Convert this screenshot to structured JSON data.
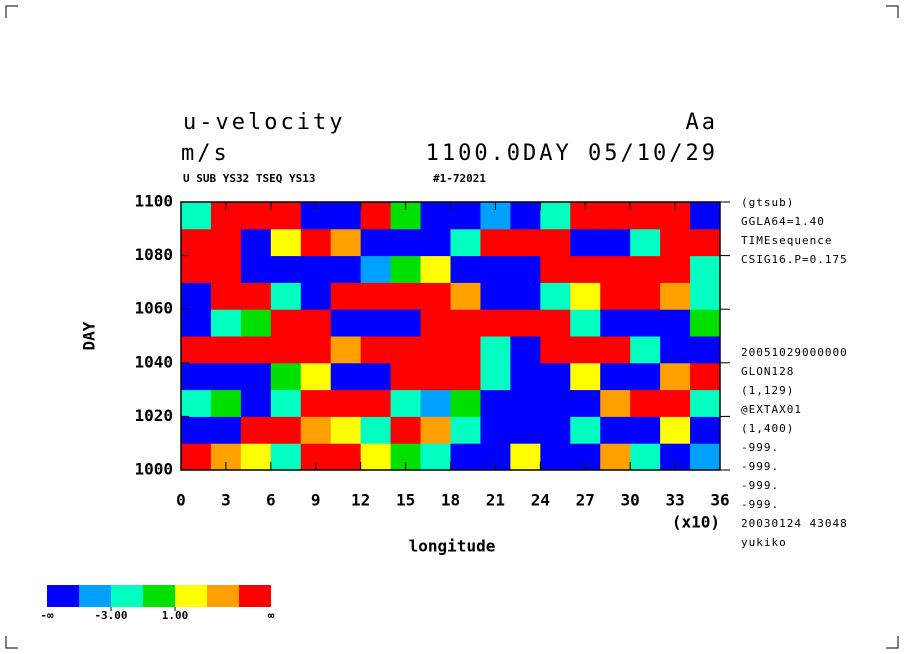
{
  "chart_data": {
    "type": "heatmap",
    "title": "u-velocity",
    "title_right": "Aa",
    "units": "m/s",
    "time_label": "1100.0DAY 05/10/29",
    "subtitle": "U SUB YS32 TSEQ YS13",
    "run_id": "#1-72021",
    "xlabel": "longitude",
    "ylabel": "DAY",
    "x_multiplier": "(x10)",
    "xlim": [
      0,
      360
    ],
    "ylim": [
      1000,
      1100
    ],
    "xticks": [
      0,
      {
        "value": 30,
        "label": "3"
      },
      {
        "value": 60,
        "label": "6"
      },
      {
        "value": 90,
        "label": "9"
      },
      {
        "value": 120,
        "label": "12"
      },
      {
        "value": 150,
        "label": "15"
      },
      {
        "value": 180,
        "label": "18"
      },
      {
        "value": 210,
        "label": "21"
      },
      {
        "value": 240,
        "label": "24"
      },
      {
        "value": 270,
        "label": "27"
      },
      {
        "value": 300,
        "label": "30"
      },
      {
        "value": 330,
        "label": "33"
      },
      {
        "value": 360,
        "label": "36"
      }
    ],
    "yticks": [
      1000,
      1020,
      1040,
      1060,
      1080,
      1100
    ],
    "annotations_top": [
      "(gtsub)",
      "GGLA64=1.40",
      "TIMEsequence",
      "CSIG16.P=0.175"
    ],
    "annotations_bottom": [
      "20051029000000",
      "GLON128",
      "(1,129)",
      "@EXTAX01",
      "(1,400)",
      "-999.",
      "-999.",
      "-999.",
      "-999.",
      "20030124  43048",
      "yukiko"
    ],
    "colors": [
      "#0000ff",
      "#00a0ff",
      "#00ffc0",
      "#00e000",
      "#ffff00",
      "#ffa000",
      "#ff0000"
    ],
    "bounds": [
      -5,
      -3,
      -1,
      1,
      3,
      5
    ],
    "colorbar_ticks": [
      {
        "value": -3,
        "label": "-3.00"
      },
      {
        "value": 1,
        "label": "1.00"
      }
    ],
    "colorbar_low_label": "-∞",
    "colorbar_high_label": "∞",
    "z": [
      [
        6,
        4,
        2,
        -2,
        6,
        6,
        2,
        0,
        -2,
        -6,
        -6,
        2,
        -6,
        -6,
        4,
        -2,
        -6,
        -4
      ],
      [
        -6,
        -6,
        6,
        6,
        4,
        2,
        -2,
        6,
        4,
        -2,
        -6,
        -6,
        -6,
        -2,
        -6,
        -6,
        2,
        -6
      ],
      [
        -2,
        0,
        -6,
        -2,
        6,
        6,
        6,
        -2,
        -4,
        0,
        -6,
        -6,
        -6,
        -6,
        4,
        6,
        6,
        -2
      ],
      [
        -6,
        -6,
        -6,
        0,
        2,
        -6,
        -6,
        6,
        6,
        6,
        -2,
        -6,
        -6,
        2,
        -6,
        -6,
        4,
        6
      ],
      [
        6,
        6,
        6,
        6,
        6,
        4,
        6,
        6,
        6,
        6,
        -2,
        -6,
        6,
        6,
        6,
        -2,
        -6,
        -6
      ],
      [
        -6,
        -2,
        0,
        6,
        6,
        -6,
        -6,
        -6,
        6,
        6,
        6,
        6,
        6,
        -2,
        -6,
        -6,
        -6,
        0
      ],
      [
        -6,
        6,
        6,
        -2,
        -6,
        6,
        6,
        6,
        6,
        4,
        -6,
        -6,
        -2,
        2,
        6,
        6,
        4,
        -2
      ],
      [
        6,
        6,
        -6,
        -6,
        -6,
        -6,
        -4,
        0,
        2,
        -6,
        -6,
        -6,
        6,
        6,
        6,
        6,
        6,
        -2
      ],
      [
        6,
        6,
        -6,
        2,
        6,
        4,
        -6,
        -6,
        -6,
        -2,
        6,
        6,
        6,
        -6,
        -6,
        -2,
        6,
        6
      ],
      [
        -2,
        6,
        6,
        6,
        -6,
        -6,
        6,
        0,
        -6,
        -6,
        -4,
        -6,
        -2,
        6,
        6,
        6,
        6,
        -6
      ]
    ]
  }
}
